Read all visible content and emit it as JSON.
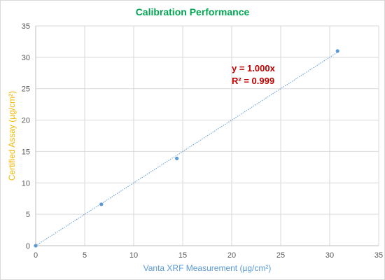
{
  "chart_data": {
    "type": "scatter",
    "title": "Calibration Performance",
    "xlabel": "Vanta XRF Measurement (µg/cm²)",
    "ylabel": "Certified Assay (µg/cm²)",
    "xlim": [
      0,
      35
    ],
    "ylim": [
      0,
      35
    ],
    "xticks": [
      "0",
      "5",
      "10",
      "15",
      "20",
      "25",
      "30",
      "35"
    ],
    "yticks": [
      "0",
      "5",
      "10",
      "15",
      "20",
      "25",
      "30",
      "35"
    ],
    "grid": true,
    "legend": "none",
    "series": [
      {
        "points": [
          {
            "x": 0,
            "y": 0
          },
          {
            "x": 6.7,
            "y": 6.6
          },
          {
            "x": 14.4,
            "y": 13.9
          },
          {
            "x": 30.8,
            "y": 31.0
          }
        ]
      }
    ],
    "trendline": {
      "slope": 1.0,
      "intercept": 0,
      "x_range": [
        0,
        30.8
      ]
    },
    "annotations": [
      "y = 1.000x",
      "R² = 0.999"
    ],
    "colors": {
      "title": "#00a651",
      "xlabel": "#5b9bd5",
      "ylabel": "#f2b800",
      "points": "#5b9bd5",
      "trendline": "#5b9bd5",
      "annotation": "#c00000",
      "grid": "#d9d9d9",
      "axis": "#bfbfbf"
    }
  }
}
